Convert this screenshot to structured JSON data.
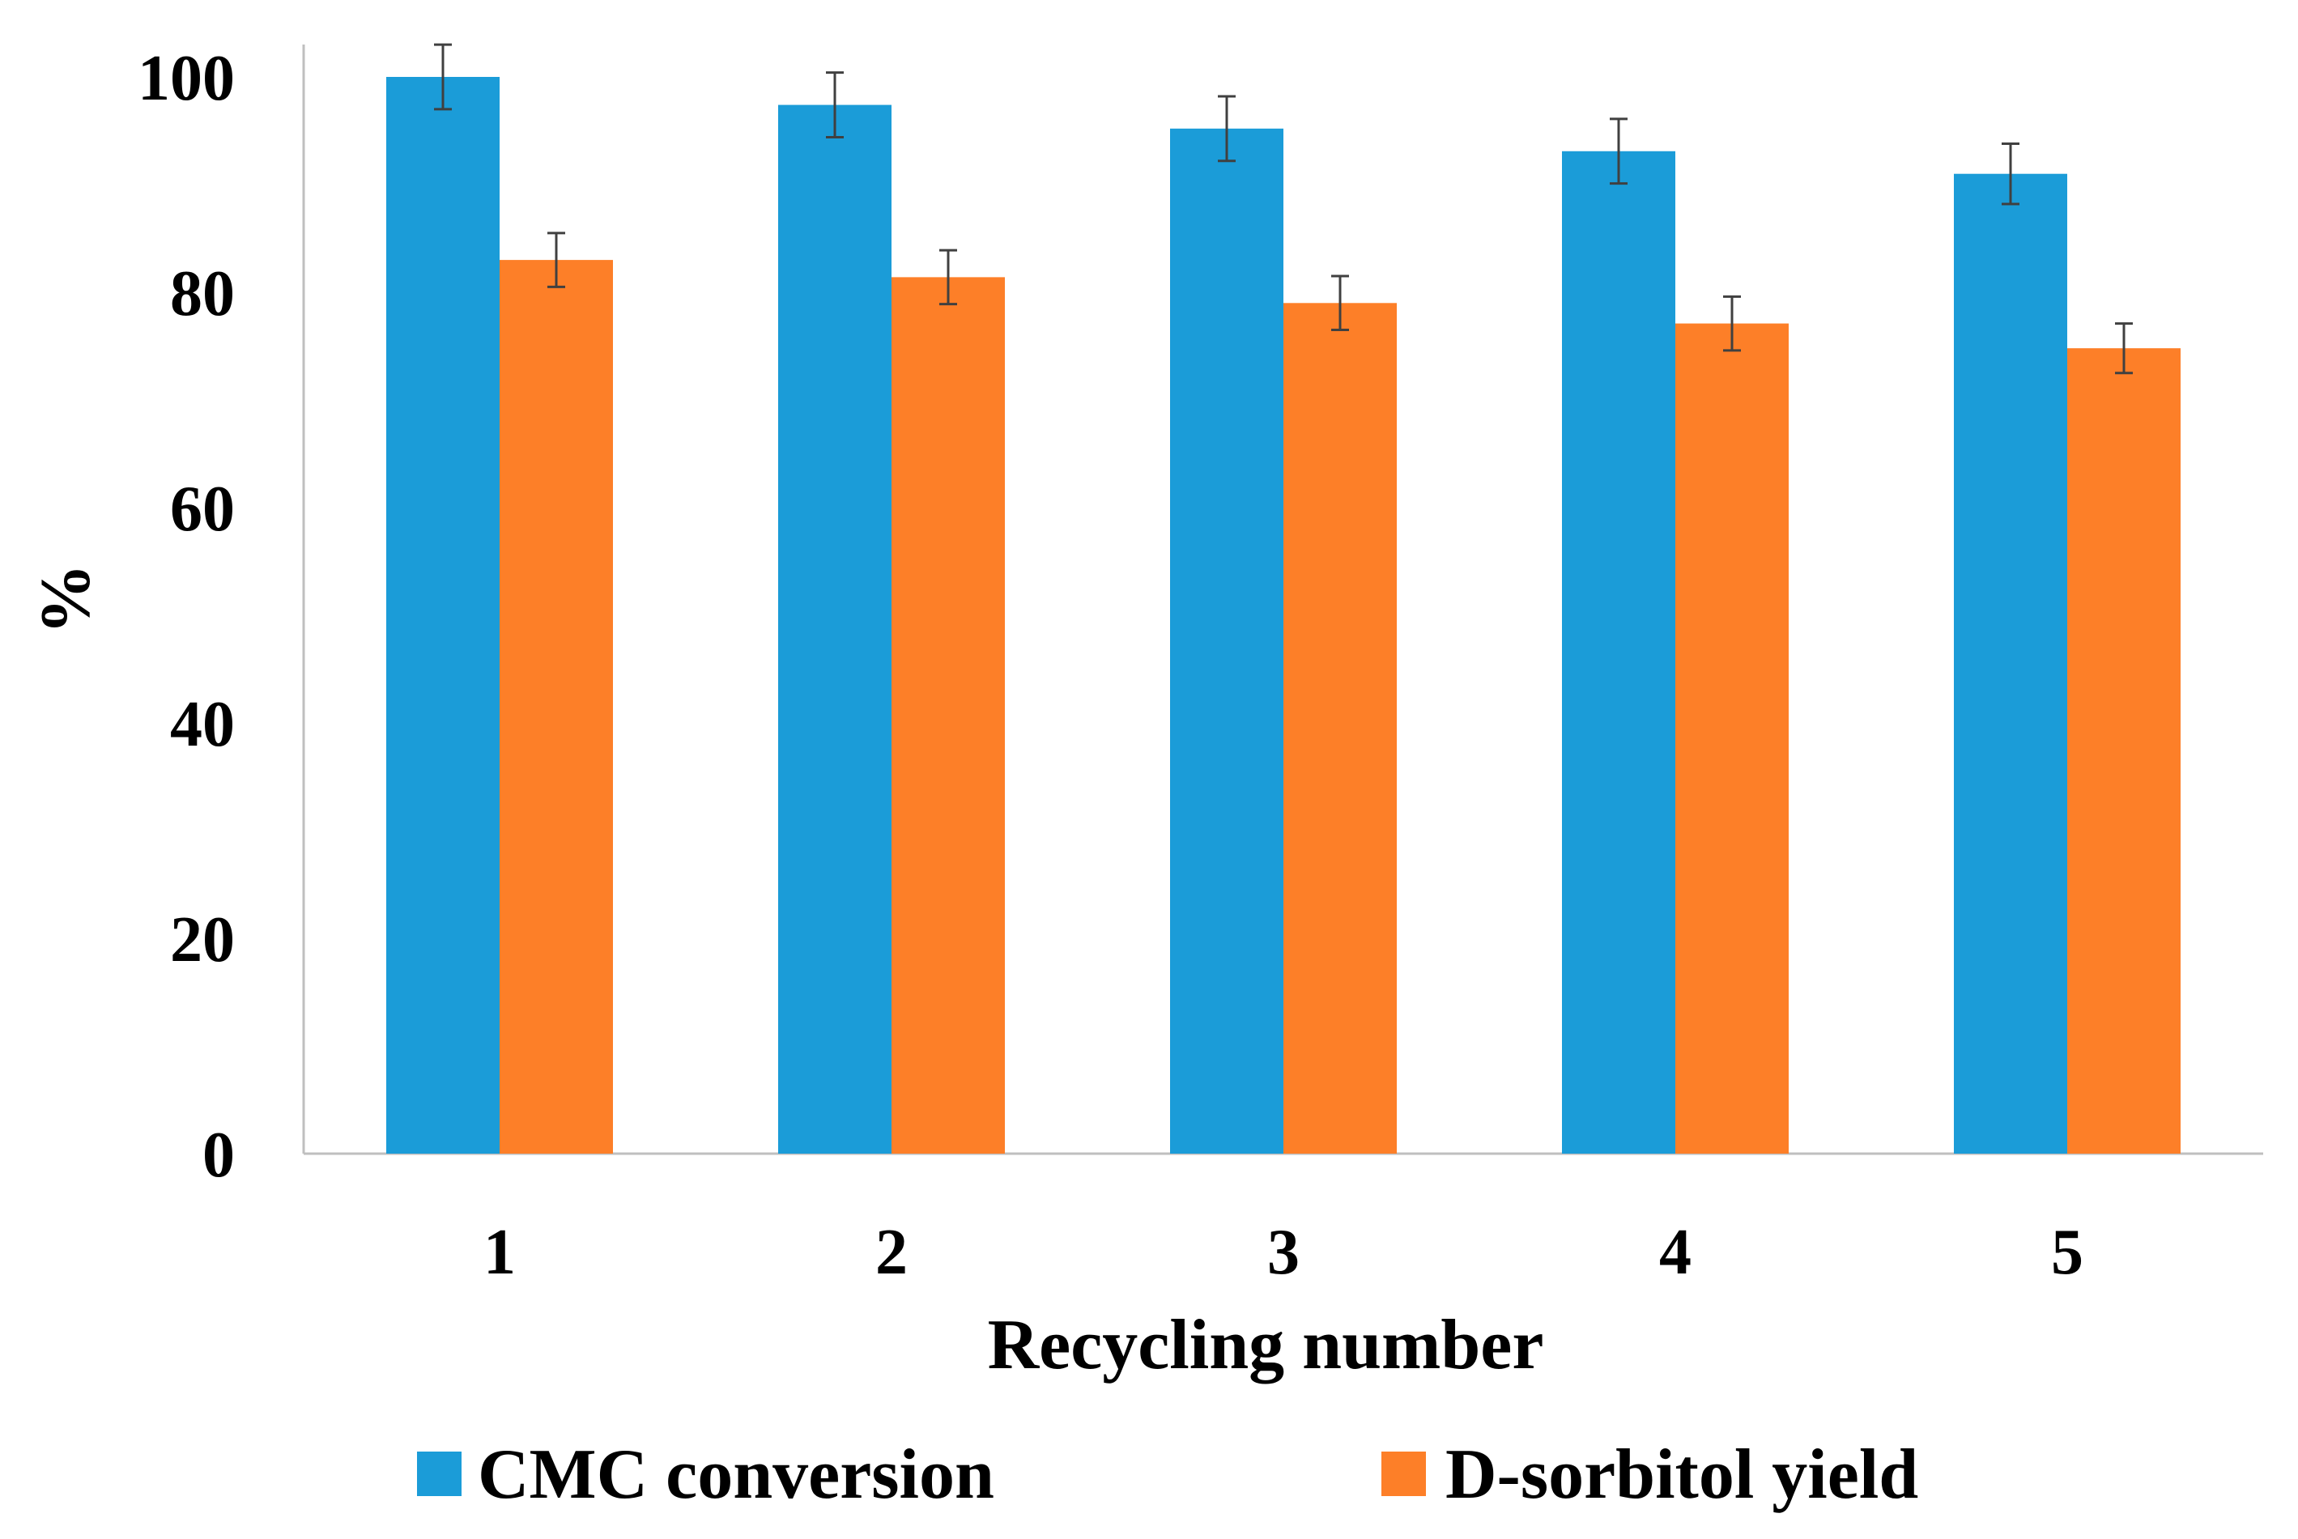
{
  "chart_data": {
    "type": "bar",
    "title": "",
    "xlabel": "Recycling number",
    "ylabel": "%",
    "categories": [
      "1",
      "2",
      "3",
      "4",
      "5"
    ],
    "ylim": [
      0,
      100
    ],
    "yticks": [
      0,
      20,
      40,
      60,
      80,
      100
    ],
    "grid": false,
    "legend_position": "bottom",
    "series": [
      {
        "name": "CMC conversion",
        "color": "#1b9cd8",
        "values": [
          100,
          97.4,
          95.2,
          93.1,
          91.0
        ],
        "errors": [
          3,
          3,
          3,
          3,
          2.8
        ]
      },
      {
        "name": "D-sorbitol yield",
        "color": "#fd7f28",
        "values": [
          83.0,
          81.4,
          79.0,
          77.1,
          74.8
        ],
        "errors": [
          2.5,
          2.5,
          2.5,
          2.5,
          2.3
        ]
      }
    ]
  }
}
